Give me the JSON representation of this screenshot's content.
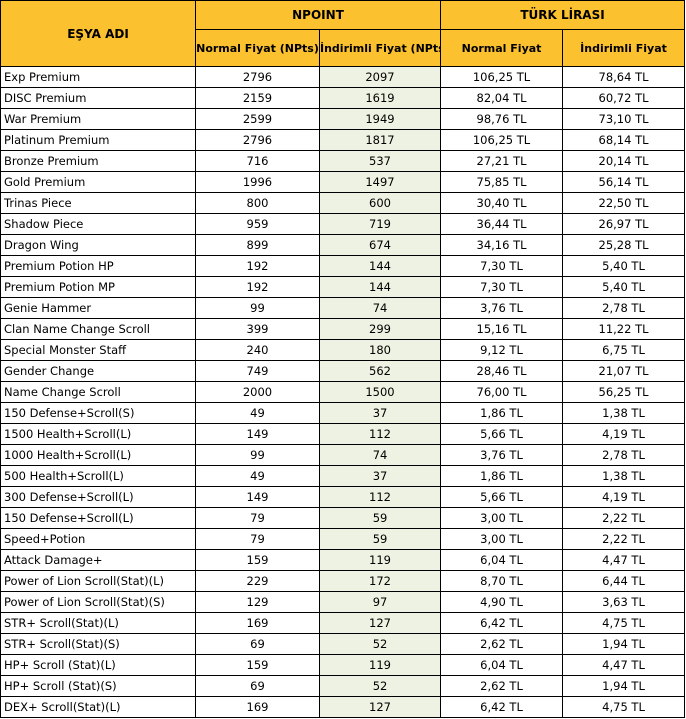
{
  "header": {
    "item_col": "EŞYA ADI",
    "group_npoint": "NPOINT",
    "group_tl": "TÜRK LİRASI",
    "normal_np": "Normal Fiyat (NPts)",
    "discount_np": "İndirimli Fiyat (NPts)",
    "normal_tl": "Normal Fiyat",
    "discount_tl": "İndirimli Fiyat"
  },
  "colors": {
    "header_bg": "#fbc12e",
    "discount_np_bg": "#eef2e2"
  },
  "rows": [
    {
      "name": "Exp Premium",
      "normal_np": "2796",
      "discount_np": "2097",
      "normal_tl": "106,25 TL",
      "discount_tl": "78,64 TL"
    },
    {
      "name": "DISC Premium",
      "normal_np": "2159",
      "discount_np": "1619",
      "normal_tl": "82,04 TL",
      "discount_tl": "60,72 TL"
    },
    {
      "name": "War Premium",
      "normal_np": "2599",
      "discount_np": "1949",
      "normal_tl": "98,76 TL",
      "discount_tl": "73,10 TL"
    },
    {
      "name": "Platinum Premium",
      "normal_np": "2796",
      "discount_np": "1817",
      "normal_tl": "106,25 TL",
      "discount_tl": "68,14 TL"
    },
    {
      "name": "Bronze Premium",
      "normal_np": "716",
      "discount_np": "537",
      "normal_tl": "27,21 TL",
      "discount_tl": "20,14 TL"
    },
    {
      "name": "Gold Premium",
      "normal_np": "1996",
      "discount_np": "1497",
      "normal_tl": "75,85 TL",
      "discount_tl": "56,14 TL"
    },
    {
      "name": "Trinas Piece",
      "normal_np": "800",
      "discount_np": "600",
      "normal_tl": "30,40 TL",
      "discount_tl": "22,50 TL"
    },
    {
      "name": "Shadow Piece",
      "normal_np": "959",
      "discount_np": "719",
      "normal_tl": "36,44 TL",
      "discount_tl": "26,97 TL"
    },
    {
      "name": "Dragon Wing",
      "normal_np": "899",
      "discount_np": "674",
      "normal_tl": "34,16 TL",
      "discount_tl": "25,28 TL"
    },
    {
      "name": "Premium Potion HP",
      "normal_np": "192",
      "discount_np": "144",
      "normal_tl": "7,30 TL",
      "discount_tl": "5,40 TL"
    },
    {
      "name": "Premium Potion MP",
      "normal_np": "192",
      "discount_np": "144",
      "normal_tl": "7,30 TL",
      "discount_tl": "5,40 TL"
    },
    {
      "name": "Genie Hammer",
      "normal_np": "99",
      "discount_np": "74",
      "normal_tl": "3,76 TL",
      "discount_tl": "2,78 TL"
    },
    {
      "name": "Clan Name Change Scroll",
      "normal_np": "399",
      "discount_np": "299",
      "normal_tl": "15,16 TL",
      "discount_tl": "11,22 TL"
    },
    {
      "name": "Special Monster Staff",
      "normal_np": "240",
      "discount_np": "180",
      "normal_tl": "9,12 TL",
      "discount_tl": "6,75 TL"
    },
    {
      "name": "Gender Change",
      "normal_np": "749",
      "discount_np": "562",
      "normal_tl": "28,46 TL",
      "discount_tl": "21,07 TL"
    },
    {
      "name": "Name Change Scroll",
      "normal_np": "2000",
      "discount_np": "1500",
      "normal_tl": "76,00 TL",
      "discount_tl": "56,25 TL"
    },
    {
      "name": "150 Defense+Scroll(S)",
      "normal_np": "49",
      "discount_np": "37",
      "normal_tl": "1,86 TL",
      "discount_tl": "1,38 TL"
    },
    {
      "name": "1500 Health+Scroll(L)",
      "normal_np": "149",
      "discount_np": "112",
      "normal_tl": "5,66 TL",
      "discount_tl": "4,19 TL"
    },
    {
      "name": "1000 Health+Scroll(L)",
      "normal_np": "99",
      "discount_np": "74",
      "normal_tl": "3,76 TL",
      "discount_tl": "2,78 TL"
    },
    {
      "name": "500 Health+Scroll(L)",
      "normal_np": "49",
      "discount_np": "37",
      "normal_tl": "1,86 TL",
      "discount_tl": "1,38 TL"
    },
    {
      "name": "300 Defense+Scroll(L)",
      "normal_np": "149",
      "discount_np": "112",
      "normal_tl": "5,66 TL",
      "discount_tl": "4,19 TL"
    },
    {
      "name": "150 Defense+Scroll(L)",
      "normal_np": "79",
      "discount_np": "59",
      "normal_tl": "3,00 TL",
      "discount_tl": "2,22 TL"
    },
    {
      "name": "Speed+Potion",
      "normal_np": "79",
      "discount_np": "59",
      "normal_tl": "3,00 TL",
      "discount_tl": "2,22 TL"
    },
    {
      "name": "Attack Damage+",
      "normal_np": "159",
      "discount_np": "119",
      "normal_tl": "6,04 TL",
      "discount_tl": "4,47 TL"
    },
    {
      "name": "Power of Lion Scroll(Stat)(L)",
      "normal_np": "229",
      "discount_np": "172",
      "normal_tl": "8,70 TL",
      "discount_tl": "6,44 TL"
    },
    {
      "name": "Power of Lion Scroll(Stat)(S)",
      "normal_np": "129",
      "discount_np": "97",
      "normal_tl": "4,90 TL",
      "discount_tl": "3,63 TL"
    },
    {
      "name": "STR+ Scroll(Stat)(L)",
      "normal_np": "169",
      "discount_np": "127",
      "normal_tl": "6,42 TL",
      "discount_tl": "4,75 TL"
    },
    {
      "name": "STR+ Scroll(Stat)(S)",
      "normal_np": "69",
      "discount_np": "52",
      "normal_tl": "2,62 TL",
      "discount_tl": "1,94 TL"
    },
    {
      "name": "HP+ Scroll (Stat)(L)",
      "normal_np": "159",
      "discount_np": "119",
      "normal_tl": "6,04 TL",
      "discount_tl": "4,47 TL"
    },
    {
      "name": "HP+ Scroll (Stat)(S)",
      "normal_np": "69",
      "discount_np": "52",
      "normal_tl": "2,62 TL",
      "discount_tl": "1,94 TL"
    },
    {
      "name": "DEX+ Scroll(Stat)(L)",
      "normal_np": "169",
      "discount_np": "127",
      "normal_tl": "6,42 TL",
      "discount_tl": "4,75 TL"
    }
  ]
}
